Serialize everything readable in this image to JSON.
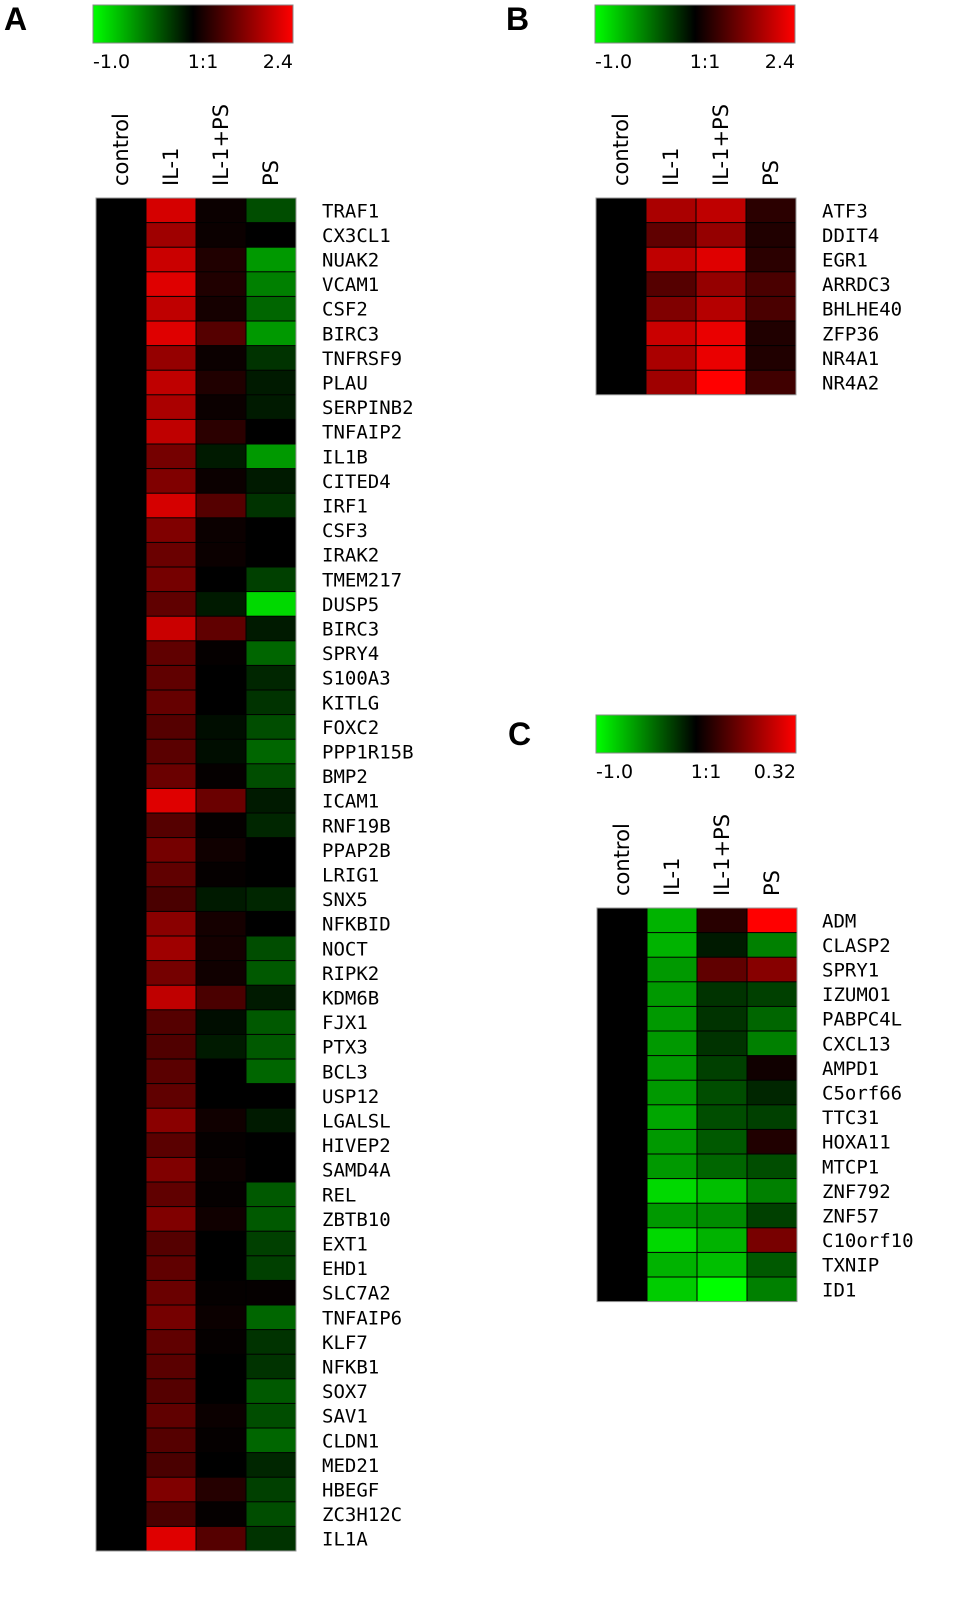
{
  "chart_data": [
    {
      "type": "heatmap",
      "panel": "A",
      "colorscale": {
        "min_label": "-1.0",
        "mid_label": "1:1",
        "max_label": "2.4",
        "min": -1.0,
        "max": 2.4,
        "low_color": "#00ff00",
        "mid_color": "#000000",
        "high_color": "#ff0000"
      },
      "columns": [
        "control",
        "IL-1",
        "IL-1+PS",
        "PS"
      ],
      "rows": [
        "TRAF1",
        "CX3CL1",
        "NUAK2",
        "VCAM1",
        "CSF2",
        "BIRC3",
        "TNFRSF9",
        "PLAU",
        "SERPINB2",
        "TNFAIP2",
        "IL1B",
        "CITED4",
        "IRF1",
        "CSF3",
        "IRAK2",
        "TMEM217",
        "DUSP5",
        "BIRC3",
        "SPRY4",
        "S100A3",
        "KITLG",
        "FOXC2",
        "PPP1R15B",
        "BMP2",
        "ICAM1",
        "RNF19B",
        "PPAP2B",
        "LRIG1",
        "SNX5",
        "NFKBID",
        "NOCT",
        "RIPK2",
        "KDM6B",
        "FJX1",
        "PTX3",
        "BCL3",
        "USP12",
        "LGALSL",
        "HIVEP2",
        "SAMD4A",
        "REL",
        "ZBTB10",
        "EXT1",
        "EHD1",
        "SLC7A2",
        "TNFAIP6",
        "KLF7",
        "NFKB1",
        "SOX7",
        "SAV1",
        "CLDN1",
        "MED21",
        "HBEGF",
        "ZC3H12C",
        "IL1A"
      ],
      "values": [
        [
          0,
          2.0,
          0.1,
          -0.3
        ],
        [
          0,
          1.5,
          0.1,
          0
        ],
        [
          0,
          1.9,
          0.3,
          -0.6
        ],
        [
          0,
          2.1,
          0.3,
          -0.5
        ],
        [
          0,
          1.8,
          0.2,
          -0.4
        ],
        [
          0,
          2.1,
          0.8,
          -0.6
        ],
        [
          0,
          1.4,
          0.1,
          -0.2
        ],
        [
          0,
          1.8,
          0.3,
          -0.1
        ],
        [
          0,
          1.6,
          0.1,
          -0.1
        ],
        [
          0,
          1.8,
          0.4,
          0
        ],
        [
          0,
          1.1,
          -0.1,
          -0.6
        ],
        [
          0,
          1.2,
          0.1,
          -0.1
        ],
        [
          0,
          2.0,
          0.8,
          -0.2
        ],
        [
          0,
          1.2,
          0.1,
          0
        ],
        [
          0,
          1.0,
          0.1,
          0
        ],
        [
          0,
          1.1,
          0,
          -0.25
        ],
        [
          0,
          0.9,
          -0.1,
          -0.85
        ],
        [
          0,
          1.9,
          0.9,
          -0.1
        ],
        [
          0,
          0.9,
          0.05,
          -0.4
        ],
        [
          0,
          0.9,
          0,
          -0.15
        ],
        [
          0,
          0.95,
          0,
          -0.2
        ],
        [
          0,
          0.8,
          -0.05,
          -0.3
        ],
        [
          0,
          0.85,
          -0.05,
          -0.4
        ],
        [
          0,
          1.0,
          0.05,
          -0.3
        ],
        [
          0,
          2.1,
          1.0,
          -0.1
        ],
        [
          0,
          0.8,
          0.05,
          -0.15
        ],
        [
          0,
          1.1,
          0.15,
          0
        ],
        [
          0,
          0.9,
          0.05,
          0
        ],
        [
          0,
          0.7,
          -0.1,
          -0.15
        ],
        [
          0,
          1.3,
          0.2,
          0
        ],
        [
          0,
          1.5,
          0.2,
          -0.3
        ],
        [
          0,
          1.1,
          0.15,
          -0.35
        ],
        [
          0,
          1.8,
          0.7,
          -0.1
        ],
        [
          0,
          0.8,
          -0.05,
          -0.35
        ],
        [
          0,
          0.75,
          -0.1,
          -0.35
        ],
        [
          0,
          0.85,
          0,
          -0.4
        ],
        [
          0,
          0.9,
          0,
          0
        ],
        [
          0,
          1.3,
          0.15,
          -0.1
        ],
        [
          0,
          0.85,
          0.05,
          0
        ],
        [
          0,
          1.2,
          0.1,
          0
        ],
        [
          0,
          0.9,
          0.05,
          -0.35
        ],
        [
          0,
          1.2,
          0.15,
          -0.35
        ],
        [
          0,
          0.8,
          0,
          -0.25
        ],
        [
          0,
          0.9,
          0,
          -0.25
        ],
        [
          0,
          1.0,
          0.05,
          0.05
        ],
        [
          0,
          1.1,
          0.1,
          -0.4
        ],
        [
          0,
          0.9,
          0.05,
          -0.2
        ],
        [
          0,
          0.85,
          0,
          -0.2
        ],
        [
          0,
          0.8,
          0,
          -0.35
        ],
        [
          0,
          0.9,
          0.1,
          -0.3
        ],
        [
          0,
          0.8,
          0.05,
          -0.4
        ],
        [
          0,
          0.7,
          0,
          -0.15
        ],
        [
          0,
          1.2,
          0.35,
          -0.25
        ],
        [
          0,
          0.7,
          0.05,
          -0.3
        ],
        [
          0,
          2.1,
          0.8,
          -0.2
        ]
      ]
    },
    {
      "type": "heatmap",
      "panel": "B",
      "colorscale": {
        "min_label": "-1.0",
        "mid_label": "1:1",
        "max_label": "2.4",
        "min": -1.0,
        "max": 2.4,
        "low_color": "#00ff00",
        "mid_color": "#000000",
        "high_color": "#ff0000"
      },
      "columns": [
        "control",
        "IL-1",
        "IL-1+PS",
        "PS"
      ],
      "rows": [
        "ATF3",
        "DDIT4",
        "EGR1",
        "ARRDC3",
        "BHLHE40",
        "ZFP36",
        "NR4A1",
        "NR4A2"
      ],
      "values": [
        [
          0,
          1.6,
          1.8,
          0.4
        ],
        [
          0,
          0.9,
          1.4,
          0.3
        ],
        [
          0,
          1.8,
          2.1,
          0.4
        ],
        [
          0,
          0.8,
          1.4,
          0.7
        ],
        [
          0,
          1.2,
          1.7,
          0.7
        ],
        [
          0,
          1.9,
          2.2,
          0.3
        ],
        [
          0,
          1.6,
          2.2,
          0.3
        ],
        [
          0,
          1.5,
          2.4,
          0.6
        ]
      ]
    },
    {
      "type": "heatmap",
      "panel": "C",
      "colorscale": {
        "min_label": "-1.0",
        "mid_label": "1:1",
        "max_label": "0.32",
        "min": -1.0,
        "max": 0.32,
        "low_color": "#00ff00",
        "mid_color": "#000000",
        "high_color": "#ff0000"
      },
      "columns": [
        "control",
        "IL-1",
        "IL-1+PS",
        "PS"
      ],
      "rows": [
        "ADM",
        "CLASP2",
        "SPRY1",
        "IZUMO1",
        "PABPC4L",
        "CXCL13",
        "AMPD1",
        "C5orf66",
        "TTC31",
        "HOXA11",
        "MTCP1",
        "ZNF792",
        "ZNF57",
        "C10orf10",
        "TXNIP",
        "ID1"
      ],
      "values": [
        [
          0,
          -0.7,
          0.05,
          0.32
        ],
        [
          0,
          -0.7,
          -0.1,
          -0.5
        ],
        [
          0,
          -0.6,
          0.12,
          0.17
        ],
        [
          0,
          -0.6,
          -0.2,
          -0.25
        ],
        [
          0,
          -0.6,
          -0.2,
          -0.4
        ],
        [
          0,
          -0.6,
          -0.2,
          -0.5
        ],
        [
          0,
          -0.6,
          -0.25,
          0.02
        ],
        [
          0,
          -0.6,
          -0.3,
          -0.15
        ],
        [
          0,
          -0.65,
          -0.3,
          -0.25
        ],
        [
          0,
          -0.6,
          -0.35,
          0.04
        ],
        [
          0,
          -0.6,
          -0.4,
          -0.3
        ],
        [
          0,
          -0.85,
          -0.75,
          -0.5
        ],
        [
          0,
          -0.6,
          -0.55,
          -0.25
        ],
        [
          0,
          -0.85,
          -0.7,
          0.15
        ],
        [
          0,
          -0.7,
          -0.75,
          -0.35
        ],
        [
          0,
          -0.8,
          -1.0,
          -0.5
        ]
      ]
    }
  ]
}
